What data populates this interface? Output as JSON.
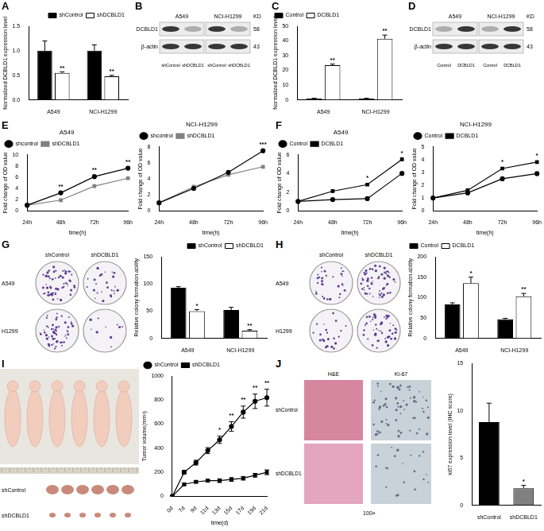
{
  "chart_data": [
    {
      "panel": "A",
      "type": "bar",
      "categories": [
        "A549",
        "NCI-H1299"
      ],
      "ylabel": "Normalized DCBLD1 expression level",
      "ylim": [
        0,
        1.5
      ],
      "yticks": [
        {
          "value": 0,
          "label": "0.0"
        },
        {
          "value": 0.5,
          "label": "0.5"
        },
        {
          "value": 1,
          "label": "1.0"
        },
        {
          "value": 1.5,
          "label": "1.5"
        }
      ],
      "grid": false,
      "legend": "top-right",
      "series": [
        {
          "name": "shControl",
          "color": "#000000",
          "values": [
            1.0,
            1.0
          ],
          "errors": [
            0.2,
            0.12
          ]
        },
        {
          "name": "shDCBLD1",
          "color": "#ffffff",
          "values": [
            0.55,
            0.48
          ],
          "errors": [
            0.02,
            0.02
          ],
          "annotations": [
            "**",
            "**"
          ]
        }
      ]
    },
    {
      "panel": "C",
      "type": "bar",
      "categories": [
        "A549",
        "NCI-H1299"
      ],
      "ylabel": "Normalized DCBLD1 expression level",
      "ylim": [
        0,
        50
      ],
      "yticks": [
        0,
        10,
        20,
        30,
        40,
        50
      ],
      "grid": false,
      "legend": "top-left",
      "series": [
        {
          "name": "Control",
          "color": "#000000",
          "values": [
            1,
            1
          ],
          "errors": [
            0.1,
            0.1
          ]
        },
        {
          "name": "DCBLD1",
          "color": "#ffffff",
          "values": [
            23.5,
            41.5
          ],
          "errors": [
            0.8,
            2.5
          ],
          "annotations": [
            "**",
            "**"
          ]
        }
      ]
    },
    {
      "panel": "E",
      "type": "line",
      "title": "A549",
      "xlabel": "time(h)",
      "ylabel": "Fold change of OD value",
      "categories": [
        "24h",
        "48h",
        "72h",
        "96h"
      ],
      "ylim": [
        0,
        10
      ],
      "yticks": [
        0,
        2,
        4,
        6,
        8,
        10
      ],
      "grid": false,
      "legend": "top-left",
      "series": [
        {
          "name": "shcontrol",
          "color": "#000000",
          "marker": "circle",
          "values": [
            1,
            3.2,
            6.1,
            7.6
          ],
          "annotations": [
            null,
            "**",
            "**",
            "**"
          ]
        },
        {
          "name": "shDCBLD1",
          "color": "#808080",
          "marker": "square",
          "values": [
            1,
            1.9,
            4.4,
            5.8
          ]
        }
      ]
    },
    {
      "type": "line",
      "title": "NCI-H1299",
      "xlabel": "time(h)",
      "ylabel": "Fold change of OD value",
      "categories": [
        "24h",
        "48h",
        "72h",
        "96h"
      ],
      "ylim": [
        0,
        8
      ],
      "yticks": [
        0,
        2,
        4,
        6,
        8
      ],
      "grid": false,
      "legend": "top-left",
      "series": [
        {
          "name": "shcontrol",
          "color": "#000000",
          "marker": "circle",
          "values": [
            1,
            2.8,
            4.8,
            7.5
          ],
          "annotations": [
            null,
            null,
            null,
            "***"
          ]
        },
        {
          "name": "shDCBLD1",
          "color": "#808080",
          "marker": "square",
          "values": [
            1,
            3.0,
            4.5,
            5.5
          ]
        }
      ]
    },
    {
      "panel": "F",
      "type": "line",
      "title": "A549",
      "xlabel": "time(h)",
      "ylabel": "Fold change of OD value",
      "categories": [
        "24h",
        "48h",
        "72h",
        "96h"
      ],
      "ylim": [
        0,
        6
      ],
      "yticks": [
        0,
        2,
        4,
        6
      ],
      "grid": false,
      "legend": "top-left",
      "series": [
        {
          "name": "Control",
          "color": "#000000",
          "marker": "circle",
          "values": [
            1,
            1.2,
            1.3,
            4.0
          ]
        },
        {
          "name": "DCBLD1",
          "color": "#000000",
          "marker": "square",
          "values": [
            1,
            2.1,
            2.8,
            5.5
          ],
          "annotations": [
            null,
            null,
            "*",
            "*"
          ]
        }
      ]
    },
    {
      "type": "line",
      "title": "NCI-H1299",
      "xlabel": "time(h)",
      "ylabel": "Fold change of OD value",
      "categories": [
        "24h",
        "48h",
        "72h",
        "96h"
      ],
      "ylim": [
        0,
        5
      ],
      "yticks": [
        0,
        1,
        2,
        3,
        4,
        5
      ],
      "grid": false,
      "legend": "top-left",
      "series": [
        {
          "name": "Control",
          "color": "#000000",
          "marker": "circle",
          "values": [
            1,
            1.4,
            2.5,
            2.9
          ]
        },
        {
          "name": "DCBLD1",
          "color": "#000000",
          "marker": "square",
          "values": [
            1,
            1.6,
            3.3,
            3.8
          ],
          "annotations": [
            null,
            null,
            "*",
            "*"
          ]
        }
      ]
    },
    {
      "type": "bar",
      "categories": [
        "A549",
        "NCI-H1299"
      ],
      "ylabel": "Relative colony formation ability",
      "ylim": [
        0,
        150
      ],
      "yticks": [
        0,
        50,
        100,
        150
      ],
      "grid": false,
      "legend": "top-right",
      "series": [
        {
          "name": "shControl",
          "color": "#000000",
          "values": [
            93,
            52
          ],
          "errors": [
            2,
            5
          ]
        },
        {
          "name": "shDCBLD1",
          "color": "#ffffff",
          "values": [
            50,
            14
          ],
          "errors": [
            3,
            2
          ],
          "annotations": [
            "*",
            "**"
          ]
        }
      ]
    },
    {
      "type": "bar",
      "categories": [
        "A549",
        "NCI-H1299"
      ],
      "ylabel": "Relative colony formation ability",
      "ylim": [
        0,
        200
      ],
      "yticks": [
        0,
        50,
        100,
        150,
        200
      ],
      "grid": false,
      "legend": "top-left",
      "series": [
        {
          "name": "Control",
          "color": "#000000",
          "values": [
            83,
            47
          ],
          "errors": [
            4,
            2
          ]
        },
        {
          "name": "DCBLD1",
          "color": "#ffffff",
          "values": [
            135,
            103
          ],
          "errors": [
            15,
            7
          ],
          "annotations": [
            "*",
            "**"
          ]
        }
      ]
    },
    {
      "type": "line",
      "xlabel": "time(d)",
      "ylabel": "Tumor volume(mm³)",
      "categories": [
        "0d",
        "7d",
        "9d",
        "11d",
        "13d",
        "15d",
        "17d",
        "19d",
        "21d"
      ],
      "ylim": [
        0,
        1000
      ],
      "yticks": [
        0,
        200,
        400,
        600,
        800,
        1000
      ],
      "grid": false,
      "legend": "top-left",
      "series": [
        {
          "name": "shControl",
          "color": "#000000",
          "marker": "circle",
          "values": [
            0,
            200,
            280,
            380,
            470,
            580,
            700,
            790,
            820
          ],
          "errors": [
            0,
            15,
            20,
            25,
            30,
            40,
            50,
            60,
            70
          ],
          "annotations": [
            null,
            null,
            null,
            null,
            "*",
            "**",
            "**",
            "**",
            "**"
          ]
        },
        {
          "name": "shDCBLD1",
          "color": "#000000",
          "marker": "square",
          "values": [
            0,
            100,
            120,
            130,
            130,
            140,
            150,
            175,
            200
          ],
          "errors": [
            0,
            10,
            10,
            10,
            15,
            15,
            15,
            15,
            20
          ]
        }
      ]
    },
    {
      "type": "bar",
      "categories": [
        "shControl",
        "shDCBLD1"
      ],
      "ylabel": "ki67 expression level (IHC score)",
      "ylim": [
        0,
        15
      ],
      "yticks": [
        0,
        5,
        10,
        15
      ],
      "grid": false,
      "values": [
        8.8,
        1.8
      ],
      "colors": [
        "#000000",
        "#808080"
      ],
      "errors": [
        2.0,
        0.3
      ],
      "annotations": [
        null,
        "*"
      ]
    }
  ],
  "images": [
    {
      "panel": "B",
      "kind": "blot",
      "groups": [
        "A549",
        "NCI-H1299"
      ],
      "columns": [
        "shControl",
        "shDCBLD1",
        "shControl",
        "shDCBLD1"
      ],
      "rows": [
        "DCBLD1",
        "β-actin"
      ],
      "unit": "KD",
      "sizes": [
        58,
        43
      ]
    },
    {
      "panel": "D",
      "kind": "blot",
      "groups": [
        "A549",
        "NCI-H1299"
      ],
      "columns": [
        "Control",
        "DCBLD1",
        "Control",
        "DCBLD1"
      ],
      "rows": [
        "DCBLD1",
        "β-actin"
      ],
      "unit": "KD",
      "sizes": [
        58,
        43
      ]
    },
    {
      "panel": "G",
      "kind": "plates",
      "columns": [
        "shControl",
        "shDCBLD1"
      ],
      "rows": [
        "A549",
        "H1299"
      ]
    },
    {
      "panel": "H",
      "kind": "plates",
      "columns": [
        "shControl",
        "shDCBLD1"
      ],
      "rows": [
        "A549",
        "H1299"
      ]
    },
    {
      "panel": "I",
      "kind": "mice",
      "rows": [
        "shControl",
        "shDCBLD1"
      ]
    },
    {
      "panel": "J",
      "kind": "ihc",
      "columns": [
        "H&E",
        "Ki-67"
      ],
      "rows": [
        "shControl",
        "shDCBLD1"
      ],
      "magnification": "100×"
    }
  ]
}
